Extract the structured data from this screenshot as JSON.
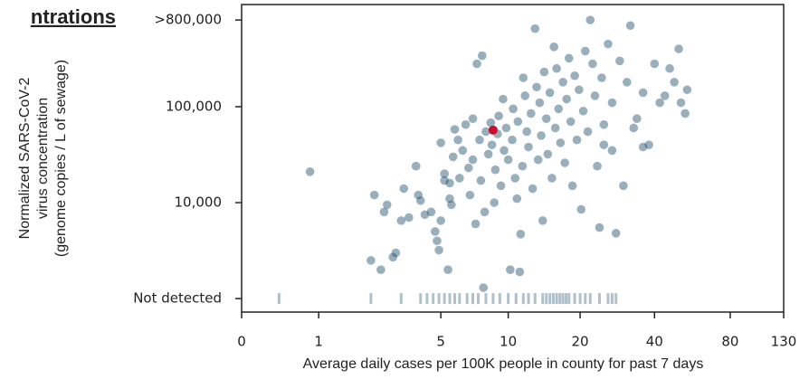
{
  "chart_data": {
    "type": "scatter",
    "title": "ntrations",
    "ylabel": [
      "Normalized SARS-CoV-2",
      "virus concentration",
      "(genome copies / L of sewage)"
    ],
    "xlabel": "Average daily cases per 100K people in county for past 7 days",
    "xscale": "log1p",
    "yscale": "log",
    "xlim": [
      0,
      130
    ],
    "xticks": [
      0,
      1,
      5,
      10,
      20,
      40,
      80,
      130
    ],
    "ylim": [
      724,
      1160000
    ],
    "yticks": [
      {
        "value": 1000,
        "label": "Not detected"
      },
      {
        "value": 10000,
        "label": "10,000"
      },
      {
        "value": 100000,
        "label": "100,000"
      },
      {
        "value": 800000,
        "label": ">800,000"
      }
    ],
    "color": "#1f4e6b",
    "points": {
      "x": [
        0.85,
        2.2,
        2.3,
        2.5,
        2.6,
        2.7,
        2.9,
        3.0,
        3.2,
        3.3,
        3.5,
        3.8,
        3.9,
        4.0,
        4.2,
        4.5,
        4.7,
        4.8,
        4.9,
        5.0,
        5.0,
        5.2,
        5.2,
        5.4,
        5.5,
        5.5,
        5.6,
        5.7,
        5.8,
        6.0,
        6.1,
        6.3,
        6.5,
        6.7,
        6.8,
        7.0,
        7.0,
        7.2,
        7.3,
        7.5,
        7.6,
        7.7,
        7.8,
        7.9,
        8.0,
        8.2,
        8.4,
        8.5,
        8.7,
        8.8,
        9.0,
        9.1,
        9.3,
        9.5,
        9.6,
        9.8,
        10.0,
        10.2,
        10.4,
        10.5,
        10.7,
        10.9,
        11.0,
        11.2,
        11.3,
        11.5,
        11.6,
        11.8,
        12.0,
        12.2,
        12.5,
        12.7,
        13.0,
        13.2,
        13.4,
        13.6,
        13.8,
        14.0,
        14.2,
        14.5,
        14.7,
        15.0,
        15.3,
        15.6,
        15.8,
        16.0,
        16.3,
        16.6,
        17.0,
        17.3,
        17.6,
        18.0,
        18.3,
        18.6,
        19.0,
        19.4,
        19.8,
        20.2,
        20.6,
        21.0,
        21.5,
        22.0,
        22.5,
        23.0,
        23.5,
        24.0,
        24.5,
        25.0,
        26.0,
        27.0,
        28.0,
        29.0,
        30.0,
        31.0,
        32.0,
        34.0,
        36.0,
        38.0,
        40.0,
        44.0,
        48.0,
        50.0,
        51.0,
        53.0,
        54.0,
        46,
        42,
        36,
        33,
        27,
        25
      ],
      "y": [
        21000,
        2500,
        12000,
        2000,
        8000,
        9500,
        2700,
        3000,
        6500,
        14000,
        7000,
        24000,
        12000,
        10500,
        7500,
        8000,
        5000,
        4000,
        3200,
        6500,
        42000,
        20000,
        17000,
        2000,
        16000,
        11000,
        9500,
        30000,
        58000,
        45000,
        18000,
        35000,
        65000,
        23000,
        12000,
        75000,
        28000,
        6000,
        280000,
        45000,
        17000,
        340000,
        1300,
        8000,
        55000,
        32000,
        68000,
        40000,
        10000,
        22000,
        52000,
        80000,
        15000,
        120000,
        35000,
        60000,
        28000,
        2000,
        45000,
        95000,
        18000,
        11000,
        70000,
        1900,
        4700,
        24000,
        200000,
        130000,
        55000,
        38000,
        85000,
        14000,
        650000,
        160000,
        28000,
        110000,
        50000,
        6500,
        230000,
        75000,
        32000,
        140000,
        18000,
        420000,
        60000,
        250000,
        95000,
        42000,
        180000,
        26000,
        120000,
        320000,
        70000,
        15000,
        210000,
        45000,
        150000,
        8500,
        90000,
        380000,
        55000,
        800000,
        280000,
        130000,
        24000,
        5500,
        200000,
        65000,
        450000,
        110000,
        4800,
        300000,
        15000,
        180000,
        700000,
        75000,
        140000,
        40000,
        280000,
        130000,
        180000,
        400000,
        110000,
        85000,
        150000,
        250000,
        110000,
        38000,
        60000,
        35000,
        40000
      ]
    },
    "not_detected_x": [
      0.4,
      2.2,
      3.2,
      4.0,
      4.3,
      4.6,
      4.9,
      5.2,
      5.5,
      5.8,
      6.1,
      6.6,
      7.0,
      7.4,
      8.0,
      8.6,
      9.2,
      10.0,
      10.8,
      11.6,
      12.2,
      13.0,
      14.0,
      14.5,
      15.0,
      15.5,
      16.0,
      16.5,
      17.0,
      17.5,
      18.0,
      19.0,
      20.0,
      21.0,
      22.0,
      24.0,
      26.0,
      27.0,
      28.0
    ],
    "highlight": {
      "x": 8.6,
      "y": 57000,
      "color": "#c8102e"
    }
  }
}
